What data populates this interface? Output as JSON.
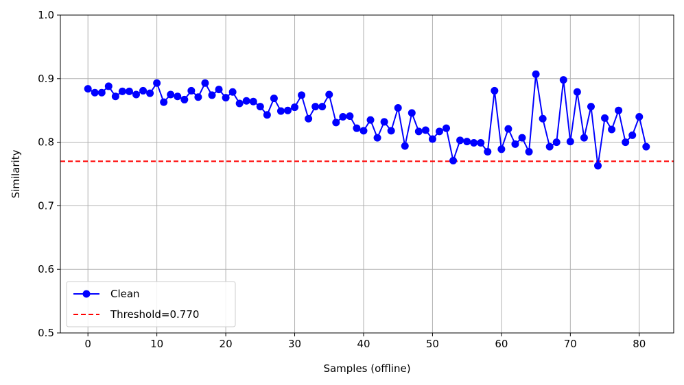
{
  "chart_data": {
    "type": "line",
    "title": "",
    "xlabel": "Samples (offline)",
    "ylabel": "Similarity",
    "xlim": [
      -4,
      85
    ],
    "ylim": [
      0.5,
      1.0
    ],
    "xticks": [
      0,
      10,
      20,
      30,
      40,
      50,
      60,
      70,
      80
    ],
    "yticks": [
      0.5,
      0.6,
      0.7,
      0.8,
      0.9,
      1.0
    ],
    "xtick_labels": [
      "0",
      "10",
      "20",
      "30",
      "40",
      "50",
      "60",
      "70",
      "80"
    ],
    "ytick_labels": [
      "0.5",
      "0.6",
      "0.7",
      "0.8",
      "0.9",
      "1.0"
    ],
    "grid": true,
    "legend_position": "lower-left",
    "series": [
      {
        "name": "Clean",
        "color": "#0000ff",
        "marker": "circle",
        "values": [
          0.884,
          0.878,
          0.878,
          0.888,
          0.872,
          0.88,
          0.88,
          0.875,
          0.881,
          0.877,
          0.893,
          0.863,
          0.875,
          0.872,
          0.867,
          0.881,
          0.871,
          0.893,
          0.874,
          0.883,
          0.87,
          0.879,
          0.861,
          0.865,
          0.864,
          0.856,
          0.843,
          0.869,
          0.849,
          0.85,
          0.855,
          0.874,
          0.837,
          0.856,
          0.856,
          0.875,
          0.831,
          0.84,
          0.841,
          0.822,
          0.818,
          0.835,
          0.807,
          0.832,
          0.818,
          0.854,
          0.794,
          0.846,
          0.817,
          0.819,
          0.805,
          0.817,
          0.822,
          0.771,
          0.803,
          0.801,
          0.799,
          0.799,
          0.785,
          0.881,
          0.789,
          0.821,
          0.797,
          0.807,
          0.785,
          0.907,
          0.837,
          0.793,
          0.8,
          0.898,
          0.801,
          0.879,
          0.807,
          0.856,
          0.763,
          0.838,
          0.82,
          0.85,
          0.8,
          0.811,
          0.84,
          0.793
        ]
      }
    ],
    "threshold": {
      "name": "Threshold=0.770",
      "value": 0.77,
      "color": "#ff0000",
      "style": "dashed"
    }
  }
}
